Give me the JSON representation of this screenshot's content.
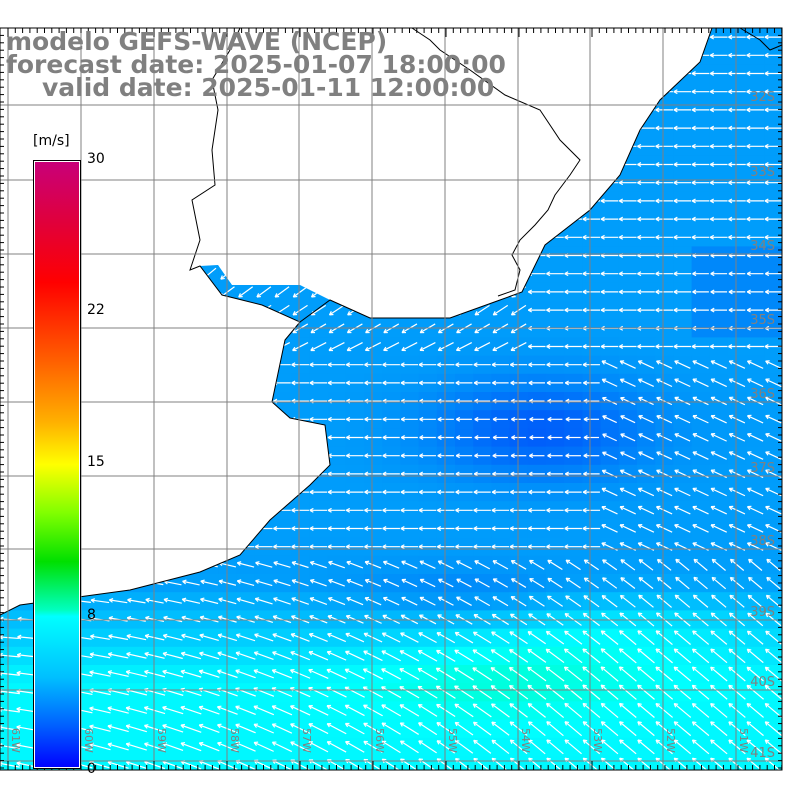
{
  "header": {
    "model": "modelo GEFS-WAVE (NCEP)",
    "forecast": "forecast date: 2025-01-07 18:00:00",
    "valid": "valid date: 2025-01-11 12:00:00"
  },
  "colorbar": {
    "unit": "[m/s]",
    "ticks": [
      "30",
      "22",
      "15",
      "8",
      "0"
    ]
  },
  "axes": {
    "lon_labels": [
      "61W",
      "60W",
      "59W",
      "58W",
      "57W",
      "56W",
      "55W",
      "54W",
      "53W",
      "52W",
      "51W"
    ],
    "lat_labels": [
      "32S",
      "33S",
      "34S",
      "35S",
      "36S",
      "37S",
      "38S",
      "39S",
      "40S",
      "41S"
    ]
  },
  "colors": {
    "land": "#ffffff",
    "grid": "#808080",
    "title": "#808080",
    "field_low": "#0a40f0",
    "field_mid": "#1a8cf8",
    "field_high": "#00f0e0"
  }
}
